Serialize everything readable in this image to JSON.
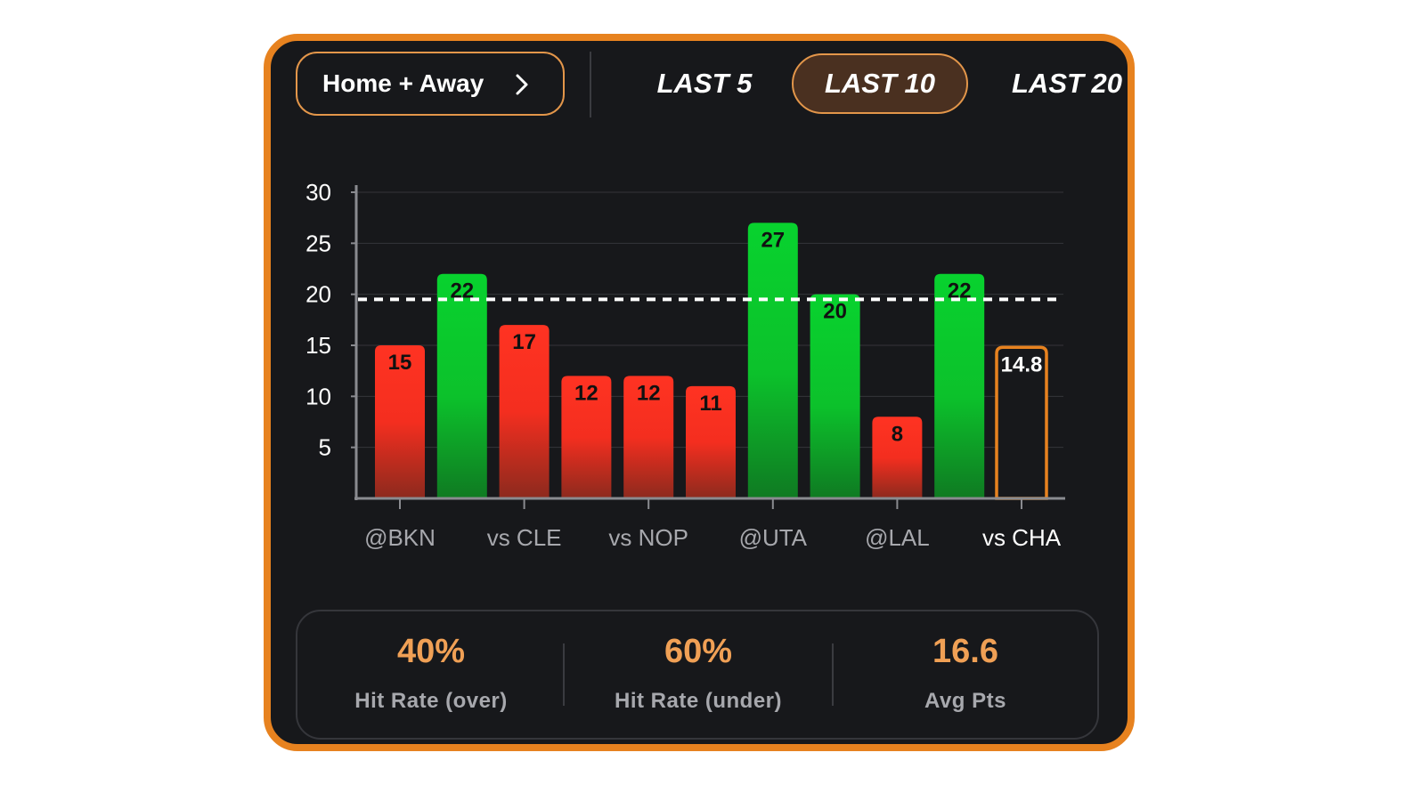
{
  "filter": {
    "label": "Home + Away"
  },
  "tabs": [
    {
      "label": "LAST 5",
      "active": false
    },
    {
      "label": "LAST 10",
      "active": true
    },
    {
      "label": "LAST 20",
      "active": false
    }
  ],
  "chart_data": {
    "type": "bar",
    "categories": [
      "@BKN",
      "",
      "vs CLE",
      "",
      "vs NOP",
      "",
      "@UTA",
      "",
      "@LAL",
      "",
      "vs CHA"
    ],
    "x_tick_labels": [
      "@BKN",
      "vs CLE",
      "vs NOP",
      "@UTA",
      "@LAL",
      "vs CHA"
    ],
    "values": [
      15,
      22,
      17,
      12,
      12,
      11,
      27,
      20,
      8,
      22,
      14.8
    ],
    "value_labels": [
      "15",
      "22",
      "17",
      "12",
      "12",
      "11",
      "27",
      "20",
      "8",
      "22",
      "14.8"
    ],
    "bar_status": [
      "under",
      "over",
      "under",
      "under",
      "under",
      "under",
      "over",
      "over",
      "under",
      "over",
      "projection"
    ],
    "threshold": 19.5,
    "ylim": [
      0,
      30
    ],
    "yticks": [
      "5",
      "10",
      "15",
      "20",
      "25",
      "30"
    ],
    "grid": true,
    "colors": {
      "over": "#12cc30",
      "under": "#ff3322",
      "projection": "#e7821f",
      "threshold": "#ffffff"
    }
  },
  "stats": [
    {
      "value": "40%",
      "label": "Hit Rate (over)"
    },
    {
      "value": "60%",
      "label": "Hit Rate (under)"
    },
    {
      "value": "16.6",
      "label": "Avg Pts"
    }
  ]
}
